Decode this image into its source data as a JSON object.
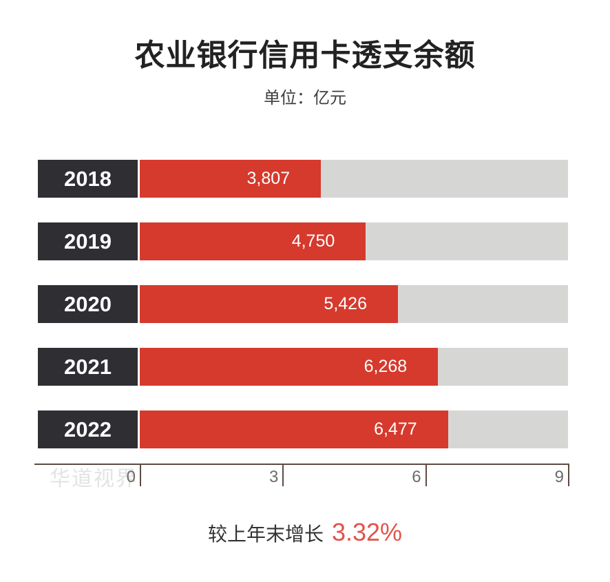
{
  "watermark": "华道视界",
  "footer": {
    "growth_label": "较上年末增长",
    "growth_value": "3.32%"
  },
  "chart_data": {
    "type": "bar",
    "orientation": "horizontal",
    "title": "农业银行信用卡透支余额",
    "subtitle": "单位：亿元",
    "categories": [
      "2018",
      "2019",
      "2020",
      "2021",
      "2022"
    ],
    "values": [
      3807,
      4750,
      5426,
      6268,
      6477
    ],
    "value_labels": [
      "3,807",
      "4,750",
      "5,426",
      "6,268",
      "6,477"
    ],
    "xlabel": "",
    "ylabel": "",
    "xlim": [
      0,
      9000
    ],
    "x_ticks": [
      0,
      3,
      6,
      9
    ],
    "x_tick_unit": 1000,
    "x_tick_labels": [
      "0",
      "3",
      "6",
      "9"
    ],
    "grid": false,
    "legend": "none",
    "colors": {
      "bar": "#d53a2d",
      "track": "#d6d7d5",
      "year_box": "#2e2e33",
      "title": "#222222",
      "growth_value": "#e0544a",
      "axis": "#5c4a42",
      "tick_label": "#6e6a68",
      "watermark": "#e3e3e3"
    }
  }
}
